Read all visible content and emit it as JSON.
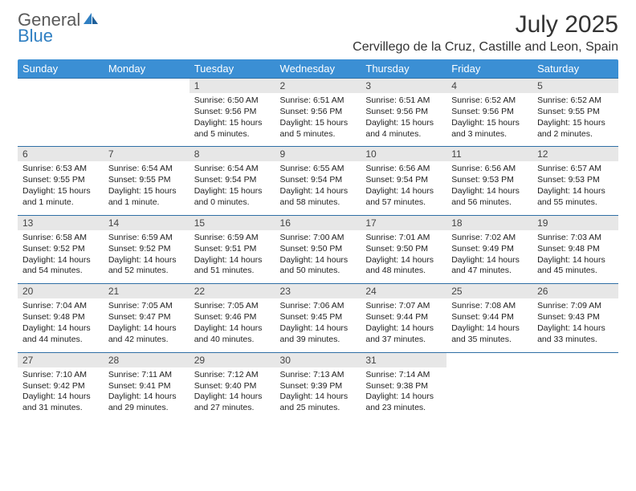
{
  "brand": {
    "line1": "General",
    "line2": "Blue"
  },
  "title": "July 2025",
  "location": "Cervillego de la Cruz, Castille and Leon, Spain",
  "colors": {
    "header_bg": "#3b8fd4",
    "rule": "#2f6fa5",
    "daynum_bg": "#e7e7e7",
    "text": "#222222",
    "brand_gray": "#5a5a5a",
    "brand_blue": "#2f7fc2"
  },
  "fonts": {
    "title_pt": 30,
    "location_pt": 16,
    "dayheader_pt": 13,
    "daynum_pt": 12,
    "body_pt": 10.5
  },
  "day_headers": [
    "Sunday",
    "Monday",
    "Tuesday",
    "Wednesday",
    "Thursday",
    "Friday",
    "Saturday"
  ],
  "weeks": [
    [
      {
        "n": "",
        "lines": []
      },
      {
        "n": "",
        "lines": []
      },
      {
        "n": "1",
        "lines": [
          "Sunrise: 6:50 AM",
          "Sunset: 9:56 PM",
          "Daylight: 15 hours",
          "and 5 minutes."
        ]
      },
      {
        "n": "2",
        "lines": [
          "Sunrise: 6:51 AM",
          "Sunset: 9:56 PM",
          "Daylight: 15 hours",
          "and 5 minutes."
        ]
      },
      {
        "n": "3",
        "lines": [
          "Sunrise: 6:51 AM",
          "Sunset: 9:56 PM",
          "Daylight: 15 hours",
          "and 4 minutes."
        ]
      },
      {
        "n": "4",
        "lines": [
          "Sunrise: 6:52 AM",
          "Sunset: 9:56 PM",
          "Daylight: 15 hours",
          "and 3 minutes."
        ]
      },
      {
        "n": "5",
        "lines": [
          "Sunrise: 6:52 AM",
          "Sunset: 9:55 PM",
          "Daylight: 15 hours",
          "and 2 minutes."
        ]
      }
    ],
    [
      {
        "n": "6",
        "lines": [
          "Sunrise: 6:53 AM",
          "Sunset: 9:55 PM",
          "Daylight: 15 hours",
          "and 1 minute."
        ]
      },
      {
        "n": "7",
        "lines": [
          "Sunrise: 6:54 AM",
          "Sunset: 9:55 PM",
          "Daylight: 15 hours",
          "and 1 minute."
        ]
      },
      {
        "n": "8",
        "lines": [
          "Sunrise: 6:54 AM",
          "Sunset: 9:54 PM",
          "Daylight: 15 hours",
          "and 0 minutes."
        ]
      },
      {
        "n": "9",
        "lines": [
          "Sunrise: 6:55 AM",
          "Sunset: 9:54 PM",
          "Daylight: 14 hours",
          "and 58 minutes."
        ]
      },
      {
        "n": "10",
        "lines": [
          "Sunrise: 6:56 AM",
          "Sunset: 9:54 PM",
          "Daylight: 14 hours",
          "and 57 minutes."
        ]
      },
      {
        "n": "11",
        "lines": [
          "Sunrise: 6:56 AM",
          "Sunset: 9:53 PM",
          "Daylight: 14 hours",
          "and 56 minutes."
        ]
      },
      {
        "n": "12",
        "lines": [
          "Sunrise: 6:57 AM",
          "Sunset: 9:53 PM",
          "Daylight: 14 hours",
          "and 55 minutes."
        ]
      }
    ],
    [
      {
        "n": "13",
        "lines": [
          "Sunrise: 6:58 AM",
          "Sunset: 9:52 PM",
          "Daylight: 14 hours",
          "and 54 minutes."
        ]
      },
      {
        "n": "14",
        "lines": [
          "Sunrise: 6:59 AM",
          "Sunset: 9:52 PM",
          "Daylight: 14 hours",
          "and 52 minutes."
        ]
      },
      {
        "n": "15",
        "lines": [
          "Sunrise: 6:59 AM",
          "Sunset: 9:51 PM",
          "Daylight: 14 hours",
          "and 51 minutes."
        ]
      },
      {
        "n": "16",
        "lines": [
          "Sunrise: 7:00 AM",
          "Sunset: 9:50 PM",
          "Daylight: 14 hours",
          "and 50 minutes."
        ]
      },
      {
        "n": "17",
        "lines": [
          "Sunrise: 7:01 AM",
          "Sunset: 9:50 PM",
          "Daylight: 14 hours",
          "and 48 minutes."
        ]
      },
      {
        "n": "18",
        "lines": [
          "Sunrise: 7:02 AM",
          "Sunset: 9:49 PM",
          "Daylight: 14 hours",
          "and 47 minutes."
        ]
      },
      {
        "n": "19",
        "lines": [
          "Sunrise: 7:03 AM",
          "Sunset: 9:48 PM",
          "Daylight: 14 hours",
          "and 45 minutes."
        ]
      }
    ],
    [
      {
        "n": "20",
        "lines": [
          "Sunrise: 7:04 AM",
          "Sunset: 9:48 PM",
          "Daylight: 14 hours",
          "and 44 minutes."
        ]
      },
      {
        "n": "21",
        "lines": [
          "Sunrise: 7:05 AM",
          "Sunset: 9:47 PM",
          "Daylight: 14 hours",
          "and 42 minutes."
        ]
      },
      {
        "n": "22",
        "lines": [
          "Sunrise: 7:05 AM",
          "Sunset: 9:46 PM",
          "Daylight: 14 hours",
          "and 40 minutes."
        ]
      },
      {
        "n": "23",
        "lines": [
          "Sunrise: 7:06 AM",
          "Sunset: 9:45 PM",
          "Daylight: 14 hours",
          "and 39 minutes."
        ]
      },
      {
        "n": "24",
        "lines": [
          "Sunrise: 7:07 AM",
          "Sunset: 9:44 PM",
          "Daylight: 14 hours",
          "and 37 minutes."
        ]
      },
      {
        "n": "25",
        "lines": [
          "Sunrise: 7:08 AM",
          "Sunset: 9:44 PM",
          "Daylight: 14 hours",
          "and 35 minutes."
        ]
      },
      {
        "n": "26",
        "lines": [
          "Sunrise: 7:09 AM",
          "Sunset: 9:43 PM",
          "Daylight: 14 hours",
          "and 33 minutes."
        ]
      }
    ],
    [
      {
        "n": "27",
        "lines": [
          "Sunrise: 7:10 AM",
          "Sunset: 9:42 PM",
          "Daylight: 14 hours",
          "and 31 minutes."
        ]
      },
      {
        "n": "28",
        "lines": [
          "Sunrise: 7:11 AM",
          "Sunset: 9:41 PM",
          "Daylight: 14 hours",
          "and 29 minutes."
        ]
      },
      {
        "n": "29",
        "lines": [
          "Sunrise: 7:12 AM",
          "Sunset: 9:40 PM",
          "Daylight: 14 hours",
          "and 27 minutes."
        ]
      },
      {
        "n": "30",
        "lines": [
          "Sunrise: 7:13 AM",
          "Sunset: 9:39 PM",
          "Daylight: 14 hours",
          "and 25 minutes."
        ]
      },
      {
        "n": "31",
        "lines": [
          "Sunrise: 7:14 AM",
          "Sunset: 9:38 PM",
          "Daylight: 14 hours",
          "and 23 minutes."
        ]
      },
      {
        "n": "",
        "lines": []
      },
      {
        "n": "",
        "lines": []
      }
    ]
  ]
}
